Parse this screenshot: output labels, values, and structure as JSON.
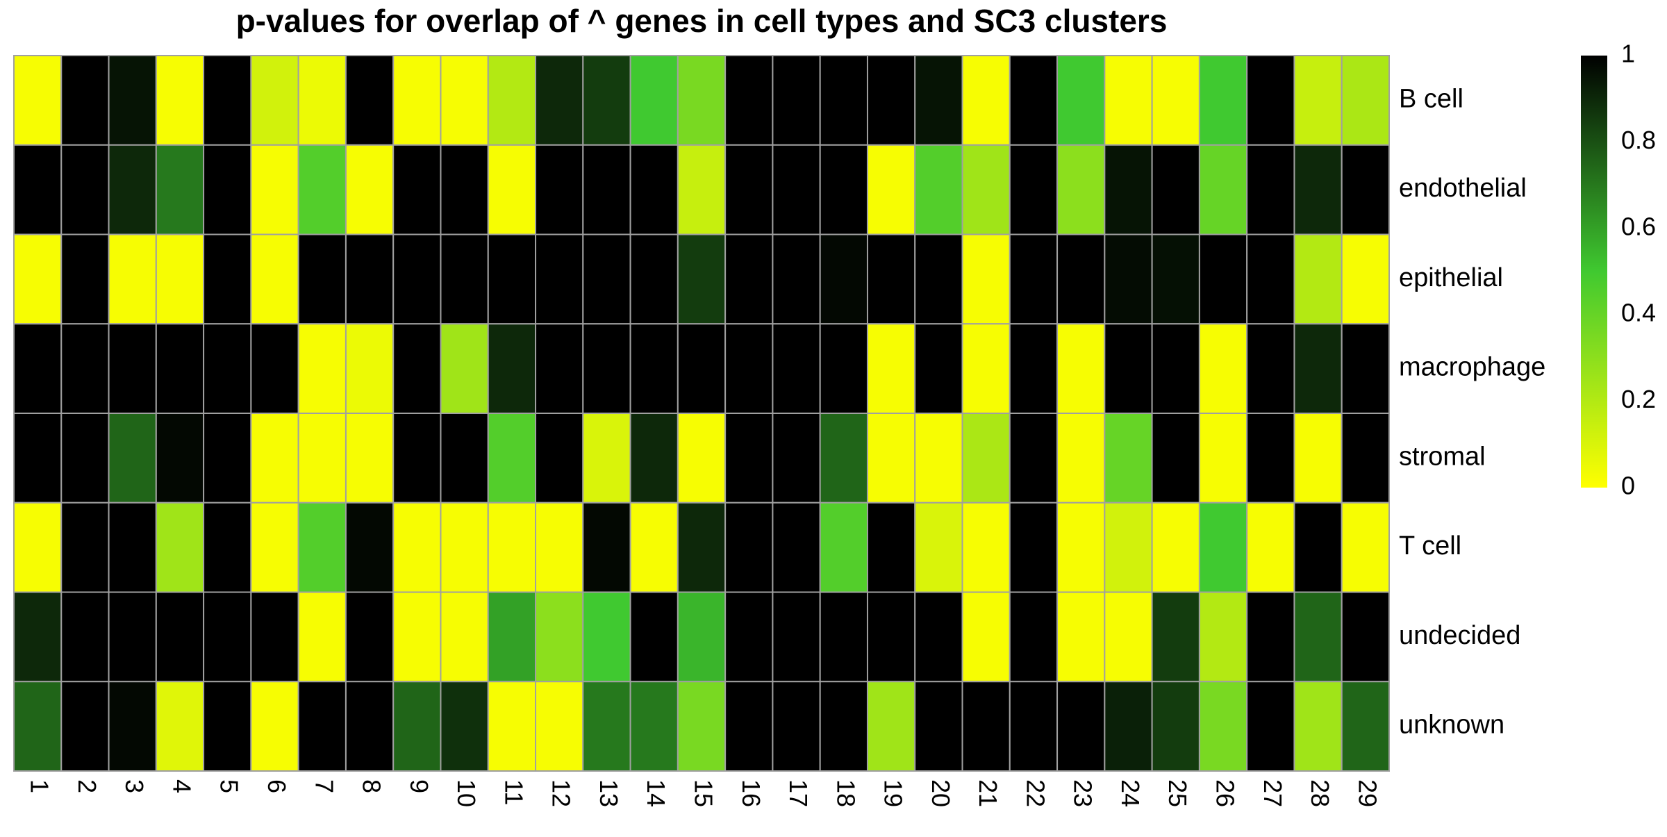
{
  "chart_data": {
    "type": "heatmap",
    "title": "p-values for overlap of ^ genes in cell types and SC3 clusters",
    "x_categories": [
      "1",
      "2",
      "3",
      "4",
      "5",
      "6",
      "7",
      "8",
      "9",
      "10",
      "11",
      "12",
      "13",
      "14",
      "15",
      "16",
      "17",
      "18",
      "19",
      "20",
      "21",
      "22",
      "23",
      "24",
      "25",
      "26",
      "27",
      "28",
      "29"
    ],
    "y_categories": [
      "B cell",
      "endothelial",
      "epithelial",
      "macrophage",
      "stromal",
      "T cell",
      "undecided",
      "unknown"
    ],
    "values": [
      [
        0.02,
        1.0,
        0.95,
        0.02,
        1.0,
        0.12,
        0.05,
        1.0,
        0.02,
        0.02,
        0.2,
        0.9,
        0.85,
        0.5,
        0.35,
        1.0,
        1.0,
        1.0,
        1.0,
        0.95,
        0.02,
        1.0,
        0.5,
        0.02,
        0.02,
        0.5,
        1.0,
        0.15,
        0.22
      ],
      [
        1.0,
        1.0,
        0.9,
        0.7,
        1.0,
        0.02,
        0.45,
        0.02,
        1.0,
        1.0,
        0.02,
        1.0,
        1.0,
        1.0,
        0.15,
        1.0,
        1.0,
        1.0,
        0.02,
        0.45,
        0.25,
        1.0,
        0.3,
        0.95,
        1.0,
        0.4,
        1.0,
        0.9,
        1.0
      ],
      [
        0.02,
        1.0,
        0.02,
        0.02,
        1.0,
        0.02,
        1.0,
        1.0,
        1.0,
        1.0,
        1.0,
        1.0,
        1.0,
        1.0,
        0.85,
        1.0,
        1.0,
        0.98,
        1.0,
        1.0,
        0.02,
        1.0,
        1.0,
        0.97,
        0.96,
        1.0,
        1.0,
        0.2,
        0.02
      ],
      [
        1.0,
        1.0,
        1.0,
        1.0,
        1.0,
        1.0,
        0.02,
        0.05,
        1.0,
        0.25,
        0.9,
        1.0,
        1.0,
        1.0,
        1.0,
        1.0,
        1.0,
        1.0,
        0.02,
        1.0,
        0.02,
        1.0,
        0.02,
        1.0,
        1.0,
        0.02,
        1.0,
        0.9,
        1.0
      ],
      [
        1.0,
        1.0,
        0.75,
        0.98,
        1.0,
        0.02,
        0.02,
        0.02,
        1.0,
        1.0,
        0.45,
        1.0,
        0.1,
        0.9,
        0.02,
        1.0,
        1.0,
        0.75,
        0.02,
        0.02,
        0.22,
        1.0,
        0.02,
        0.4,
        1.0,
        0.02,
        1.0,
        0.02,
        1.0
      ],
      [
        0.02,
        1.0,
        1.0,
        0.25,
        1.0,
        0.02,
        0.45,
        0.98,
        0.02,
        0.02,
        0.02,
        0.02,
        0.98,
        0.02,
        0.9,
        1.0,
        1.0,
        0.45,
        1.0,
        0.1,
        0.02,
        1.0,
        0.02,
        0.12,
        0.02,
        0.5,
        0.02,
        1.0,
        0.02
      ],
      [
        0.9,
        1.0,
        1.0,
        1.0,
        1.0,
        1.0,
        0.02,
        1.0,
        0.02,
        0.02,
        0.6,
        0.3,
        0.5,
        1.0,
        0.55,
        1.0,
        1.0,
        1.0,
        1.0,
        1.0,
        0.02,
        1.0,
        0.02,
        0.02,
        0.85,
        0.2,
        1.0,
        0.75,
        1.0
      ],
      [
        0.75,
        1.0,
        0.98,
        0.08,
        1.0,
        0.02,
        1.0,
        1.0,
        0.75,
        0.88,
        0.02,
        0.02,
        0.7,
        0.7,
        0.35,
        1.0,
        1.0,
        1.0,
        0.25,
        1.0,
        1.0,
        1.0,
        1.0,
        0.92,
        0.85,
        0.35,
        1.0,
        0.25,
        0.75
      ]
    ],
    "colorbar": {
      "range": [
        0,
        1
      ],
      "ticks": [
        "0",
        "0.2",
        "0.4",
        "0.6",
        "0.8",
        "1"
      ],
      "tick_values": [
        0,
        0.2,
        0.4,
        0.6,
        0.8,
        1
      ],
      "colors": [
        "#ffff00",
        "#40c930",
        "#000000"
      ]
    },
    "cell_border_color": "#a0a0a0"
  }
}
